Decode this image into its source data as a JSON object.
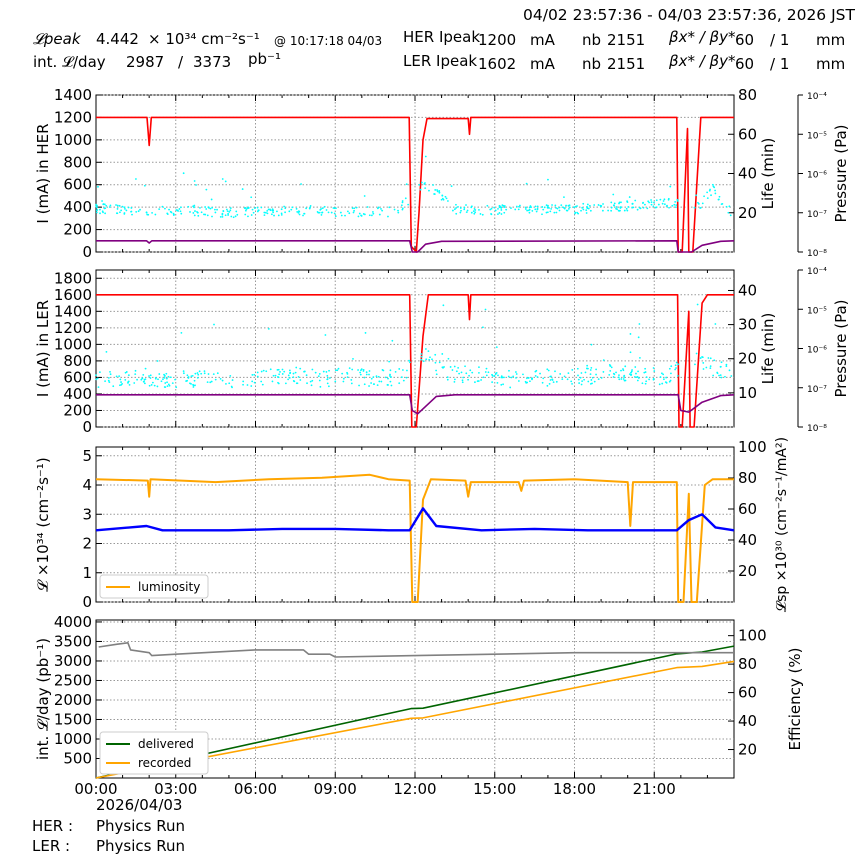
{
  "header": {
    "range": "04/02 23:57:36 - 04/03 23:57:36, 2026 JST",
    "lpeak_label": "𝓛peak",
    "lpeak_value": "4.442",
    "lpeak_unit": "× 10³⁴ cm⁻²s⁻¹",
    "lpeak_time": "@ 10:17:18 04/03",
    "intl_label": "int. 𝓛/day",
    "intl_value": "2987",
    "intl_sep": "/",
    "intl_total": "3373",
    "intl_unit": "pb⁻¹",
    "her_label": "HER Ipeak",
    "her_value": "1200",
    "her_unit": "mA",
    "ler_label": "LER Ipeak",
    "ler_value": "1602",
    "ler_unit": "mA",
    "nb_label": "nb",
    "nb_her": "2151",
    "nb_ler": "2151",
    "beta_label": "βx* / βy*",
    "beta_her_x": "60",
    "beta_her_y": "/ 1",
    "beta_ler_x": "60",
    "beta_ler_y": "/ 1",
    "beta_unit": "mm"
  },
  "footer": {
    "date": "2026/04/03",
    "her_label": "HER :",
    "her_mode": "Physics Run",
    "ler_label": "LER :",
    "ler_mode": "Physics Run"
  },
  "chart_data": [
    {
      "type": "line",
      "panel": "her",
      "ylabel": "I (mA) in HER",
      "ylim": [
        0,
        1400
      ],
      "yticks": [
        "0",
        "200",
        "400",
        "600",
        "800",
        "1000",
        "1200",
        "1400"
      ],
      "y2label": "Life (min)",
      "y2lim": [
        0,
        80
      ],
      "y2ticks": [
        "20",
        "40",
        "60",
        "80"
      ],
      "y3label": "Pressure (Pa)",
      "y3ticks": [
        "10⁻⁸",
        "10⁻⁷",
        "10⁻⁶",
        "10⁻⁵",
        "10⁻⁴"
      ],
      "xlim": [
        0,
        24
      ],
      "grid": true,
      "colors": {
        "current": "#ff0000",
        "life": "#00ffff",
        "pressure": "#800080"
      },
      "series": [
        {
          "role": "current",
          "points": [
            [
              0,
              1200
            ],
            [
              1.92,
              1200
            ],
            [
              2.0,
              950
            ],
            [
              2.08,
              1200
            ],
            [
              11.78,
              1200
            ],
            [
              11.86,
              50
            ],
            [
              12.05,
              0
            ],
            [
              12.15,
              350
            ],
            [
              12.3,
              1000
            ],
            [
              12.45,
              1190
            ],
            [
              14.0,
              1190
            ],
            [
              14.05,
              1050
            ],
            [
              14.1,
              1200
            ],
            [
              21.85,
              1200
            ],
            [
              21.9,
              0
            ],
            [
              22.05,
              0
            ],
            [
              22.25,
              1100
            ],
            [
              22.3,
              0
            ],
            [
              22.45,
              0
            ],
            [
              22.75,
              1200
            ],
            [
              24,
              1200
            ]
          ]
        },
        {
          "role": "life",
          "points": [
            [
              0.5,
              22
            ],
            [
              1.5,
              21
            ],
            [
              2.3,
              21
            ],
            [
              3.5,
              21
            ],
            [
              5.2,
              20
            ],
            [
              6.5,
              21
            ],
            [
              7.5,
              21
            ],
            [
              8.3,
              21
            ],
            [
              9.3,
              20
            ],
            [
              10.5,
              21
            ],
            [
              11.3,
              20
            ],
            [
              12.3,
              35
            ],
            [
              12.6,
              33
            ],
            [
              13.5,
              22
            ],
            [
              14.5,
              21
            ],
            [
              15.5,
              22
            ],
            [
              16.5,
              21
            ],
            [
              17.5,
              22
            ],
            [
              18.5,
              22
            ],
            [
              19.5,
              23
            ],
            [
              20.5,
              24
            ],
            [
              21.5,
              25
            ],
            [
              22.6,
              22
            ],
            [
              23.2,
              32
            ],
            [
              23.8,
              21
            ]
          ]
        },
        {
          "role": "pressure",
          "points": [
            [
              0,
              100
            ],
            [
              1.9,
              100
            ],
            [
              2.0,
              80
            ],
            [
              2.1,
              100
            ],
            [
              11.8,
              100
            ],
            [
              11.9,
              0
            ],
            [
              12.1,
              0
            ],
            [
              12.4,
              70
            ],
            [
              13.0,
              95
            ],
            [
              21.85,
              100
            ],
            [
              21.9,
              0
            ],
            [
              22.4,
              0
            ],
            [
              22.8,
              60
            ],
            [
              23.5,
              95
            ],
            [
              24,
              100
            ]
          ]
        }
      ]
    },
    {
      "type": "line",
      "panel": "ler",
      "ylabel": "I (mA) in LER",
      "ylim": [
        0,
        1900
      ],
      "yticks": [
        "0",
        "200",
        "400",
        "600",
        "800",
        "1000",
        "1200",
        "1400",
        "1600",
        "1800"
      ],
      "y2label": "Life (min)",
      "y2lim": [
        0,
        46
      ],
      "y2ticks": [
        "10",
        "20",
        "30",
        "40"
      ],
      "y3label": "Pressure (Pa)",
      "y3ticks": [
        "10⁻⁸",
        "10⁻⁷",
        "10⁻⁶",
        "10⁻⁵",
        "10⁻⁴"
      ],
      "xlim": [
        0,
        24
      ],
      "grid": true,
      "colors": {
        "current": "#ff0000",
        "life": "#00ffff",
        "pressure": "#800080"
      },
      "series": [
        {
          "role": "current",
          "points": [
            [
              0,
              1600
            ],
            [
              11.8,
              1600
            ],
            [
              11.88,
              0
            ],
            [
              12.05,
              0
            ],
            [
              12.3,
              1100
            ],
            [
              12.5,
              1600
            ],
            [
              14.0,
              1600
            ],
            [
              14.05,
              1300
            ],
            [
              14.1,
              1600
            ],
            [
              21.88,
              1600
            ],
            [
              21.93,
              0
            ],
            [
              22.05,
              0
            ],
            [
              22.3,
              1400
            ],
            [
              22.35,
              0
            ],
            [
              22.5,
              0
            ],
            [
              22.8,
              1500
            ],
            [
              23.0,
              1600
            ],
            [
              24,
              1600
            ]
          ]
        },
        {
          "role": "life",
          "points": [
            [
              0.5,
              14
            ],
            [
              1.5,
              15
            ],
            [
              2.5,
              14
            ],
            [
              3.5,
              14
            ],
            [
              4.5,
              14
            ],
            [
              5.5,
              14
            ],
            [
              6.5,
              15
            ],
            [
              7.5,
              15
            ],
            [
              8.5,
              14
            ],
            [
              9.5,
              15
            ],
            [
              10.5,
              14
            ],
            [
              11.5,
              15
            ],
            [
              12.4,
              22
            ],
            [
              13.0,
              16
            ],
            [
              14.5,
              15
            ],
            [
              15.5,
              14
            ],
            [
              16.5,
              15
            ],
            [
              17.5,
              14
            ],
            [
              18.5,
              15
            ],
            [
              19.5,
              16
            ],
            [
              20.5,
              15
            ],
            [
              21.5,
              15
            ],
            [
              22.7,
              20
            ],
            [
              23.3,
              17
            ],
            [
              23.8,
              16
            ]
          ]
        },
        {
          "role": "pressure",
          "points": [
            [
              0,
              390
            ],
            [
              11.8,
              390
            ],
            [
              11.9,
              200
            ],
            [
              12.1,
              160
            ],
            [
              12.8,
              370
            ],
            [
              13.5,
              390
            ],
            [
              21.9,
              390
            ],
            [
              22.0,
              200
            ],
            [
              22.3,
              180
            ],
            [
              22.8,
              300
            ],
            [
              23.5,
              380
            ],
            [
              24,
              390
            ]
          ]
        }
      ]
    },
    {
      "type": "line",
      "panel": "luminosity",
      "ylabel": "𝓛 ×10³⁴ (cm⁻²s⁻¹)",
      "ylim": [
        0,
        5.3
      ],
      "yticks": [
        "0",
        "1",
        "2",
        "3",
        "4",
        "5"
      ],
      "y2label": "𝓛sp ×10³⁰ (cm⁻²s⁻¹/mA²)",
      "y2lim": [
        0,
        100
      ],
      "y2ticks": [
        "20",
        "40",
        "60",
        "80",
        "100"
      ],
      "xlim": [
        0,
        24
      ],
      "grid": true,
      "legend": {
        "position": "bottom-left",
        "entries": [
          "luminosity"
        ]
      },
      "colors": {
        "luminosity": "#ffa500",
        "specific": "#0000ff"
      },
      "series": [
        {
          "name": "luminosity",
          "points": [
            [
              0,
              4.2
            ],
            [
              1.95,
              4.15
            ],
            [
              2.0,
              3.6
            ],
            [
              2.05,
              4.2
            ],
            [
              4.5,
              4.1
            ],
            [
              6.5,
              4.2
            ],
            [
              8.5,
              4.25
            ],
            [
              10.3,
              4.35
            ],
            [
              11.0,
              4.2
            ],
            [
              11.8,
              4.15
            ],
            [
              11.9,
              0
            ],
            [
              12.1,
              0
            ],
            [
              12.3,
              3.5
            ],
            [
              12.6,
              4.2
            ],
            [
              13.9,
              4.15
            ],
            [
              14.0,
              3.6
            ],
            [
              14.1,
              4.1
            ],
            [
              15.9,
              4.1
            ],
            [
              16.0,
              3.8
            ],
            [
              16.1,
              4.15
            ],
            [
              18.0,
              4.2
            ],
            [
              20.0,
              4.1
            ],
            [
              20.1,
              2.6
            ],
            [
              20.2,
              4.1
            ],
            [
              21.85,
              4.1
            ],
            [
              21.9,
              0
            ],
            [
              22.1,
              0
            ],
            [
              22.3,
              3.7
            ],
            [
              22.4,
              0
            ],
            [
              22.6,
              0
            ],
            [
              22.9,
              4.0
            ],
            [
              23.2,
              4.2
            ],
            [
              24,
              4.2
            ]
          ]
        },
        {
          "name": "",
          "points": [
            [
              0,
              2.45
            ],
            [
              1.9,
              2.6
            ],
            [
              2.5,
              2.45
            ],
            [
              5,
              2.45
            ],
            [
              7,
              2.5
            ],
            [
              9,
              2.5
            ],
            [
              11,
              2.45
            ],
            [
              11.8,
              2.45
            ],
            [
              12.3,
              3.2
            ],
            [
              12.8,
              2.6
            ],
            [
              14.5,
              2.45
            ],
            [
              16.5,
              2.5
            ],
            [
              18.5,
              2.45
            ],
            [
              20.5,
              2.45
            ],
            [
              21.85,
              2.45
            ],
            [
              22.3,
              2.8
            ],
            [
              22.8,
              3.0
            ],
            [
              23.3,
              2.55
            ],
            [
              24,
              2.45
            ]
          ]
        }
      ]
    },
    {
      "type": "line",
      "panel": "integrated",
      "ylabel": "int. 𝓛/day (pb⁻¹)",
      "ylim": [
        0,
        4050
      ],
      "yticks": [
        "500",
        "1000",
        "1500",
        "2000",
        "2500",
        "3000",
        "3500",
        "4000"
      ],
      "y2label": "Efficiency (%)",
      "y2lim": [
        0,
        111
      ],
      "y2ticks": [
        "20",
        "40",
        "60",
        "80",
        "100"
      ],
      "xlim": [
        0,
        24
      ],
      "xticks": [
        "00:00",
        "03:00",
        "06:00",
        "09:00",
        "12:00",
        "15:00",
        "18:00",
        "21:00"
      ],
      "grid": true,
      "legend": {
        "position": "bottom-left",
        "entries": [
          "delivered",
          "recorded"
        ]
      },
      "colors": {
        "delivered": "#006400",
        "recorded": "#ffa500",
        "efficiency": "#808080"
      },
      "series": [
        {
          "name": "delivered",
          "points": [
            [
              0,
              0
            ],
            [
              11.85,
              1780
            ],
            [
              12.3,
              1790
            ],
            [
              21.85,
              3180
            ],
            [
              22.8,
              3230
            ],
            [
              24,
              3380
            ]
          ]
        },
        {
          "name": "recorded",
          "points": [
            [
              0,
              0
            ],
            [
              11.85,
              1530
            ],
            [
              12.3,
              1540
            ],
            [
              21.85,
              2830
            ],
            [
              22.8,
              2860
            ],
            [
              24,
              2990
            ]
          ]
        },
        {
          "name": "",
          "points": [
            [
              0.1,
              92
            ],
            [
              0.8,
              94
            ],
            [
              1.2,
              95
            ],
            [
              1.3,
              90
            ],
            [
              2.0,
              88
            ],
            [
              2.1,
              86
            ],
            [
              3.0,
              87
            ],
            [
              6.0,
              90
            ],
            [
              7.8,
              90
            ],
            [
              8.0,
              87
            ],
            [
              8.8,
              87
            ],
            [
              9.0,
              85
            ],
            [
              12.0,
              86
            ],
            [
              18.0,
              88
            ],
            [
              21.0,
              88
            ],
            [
              24,
              88
            ]
          ]
        }
      ]
    }
  ]
}
